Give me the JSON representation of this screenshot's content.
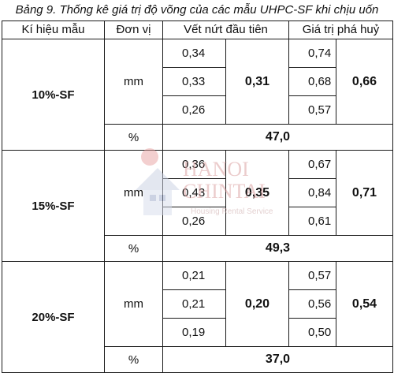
{
  "caption": "Bảng 9. Thống kê giá trị độ võng của các mẫu UHPC-SF khi chịu uốn",
  "headers": {
    "symbol": "Kí hiệu mẫu",
    "unit": "Đơn vị",
    "first_crack": "Vết nứt đầu tiên",
    "failure": "Giá trị phá huỷ"
  },
  "rows": [
    {
      "symbol": "10%-SF",
      "unit": "mm",
      "crack_values": [
        "0,34",
        "0,33",
        "0,26"
      ],
      "crack_avg": "0,31",
      "fail_values": [
        "0,74",
        "0,68",
        "0,57"
      ],
      "fail_avg": "0,66",
      "pct_unit": "%",
      "pct_value": "47,0"
    },
    {
      "symbol": "15%-SF",
      "unit": "mm",
      "crack_values": [
        "0,36",
        "0,43",
        "0,26"
      ],
      "crack_avg": "0,35",
      "fail_values": [
        "0,67",
        "0,84",
        "0,61"
      ],
      "fail_avg": "0,71",
      "pct_unit": "%",
      "pct_value": "49,3"
    },
    {
      "symbol": "20%-SF",
      "unit": "mm",
      "crack_values": [
        "0,21",
        "0,21",
        "0,19"
      ],
      "crack_avg": "0,20",
      "fail_values": [
        "0,57",
        "0,56",
        "0,50"
      ],
      "fail_avg": "0,54",
      "pct_unit": "%",
      "pct_value": "37,0"
    }
  ],
  "watermark": {
    "line1": "HANOI",
    "line2": "CHINTAI",
    "line3": "Housing Rental Service",
    "color": "#d9534f",
    "accent": "#5b6fa8"
  }
}
